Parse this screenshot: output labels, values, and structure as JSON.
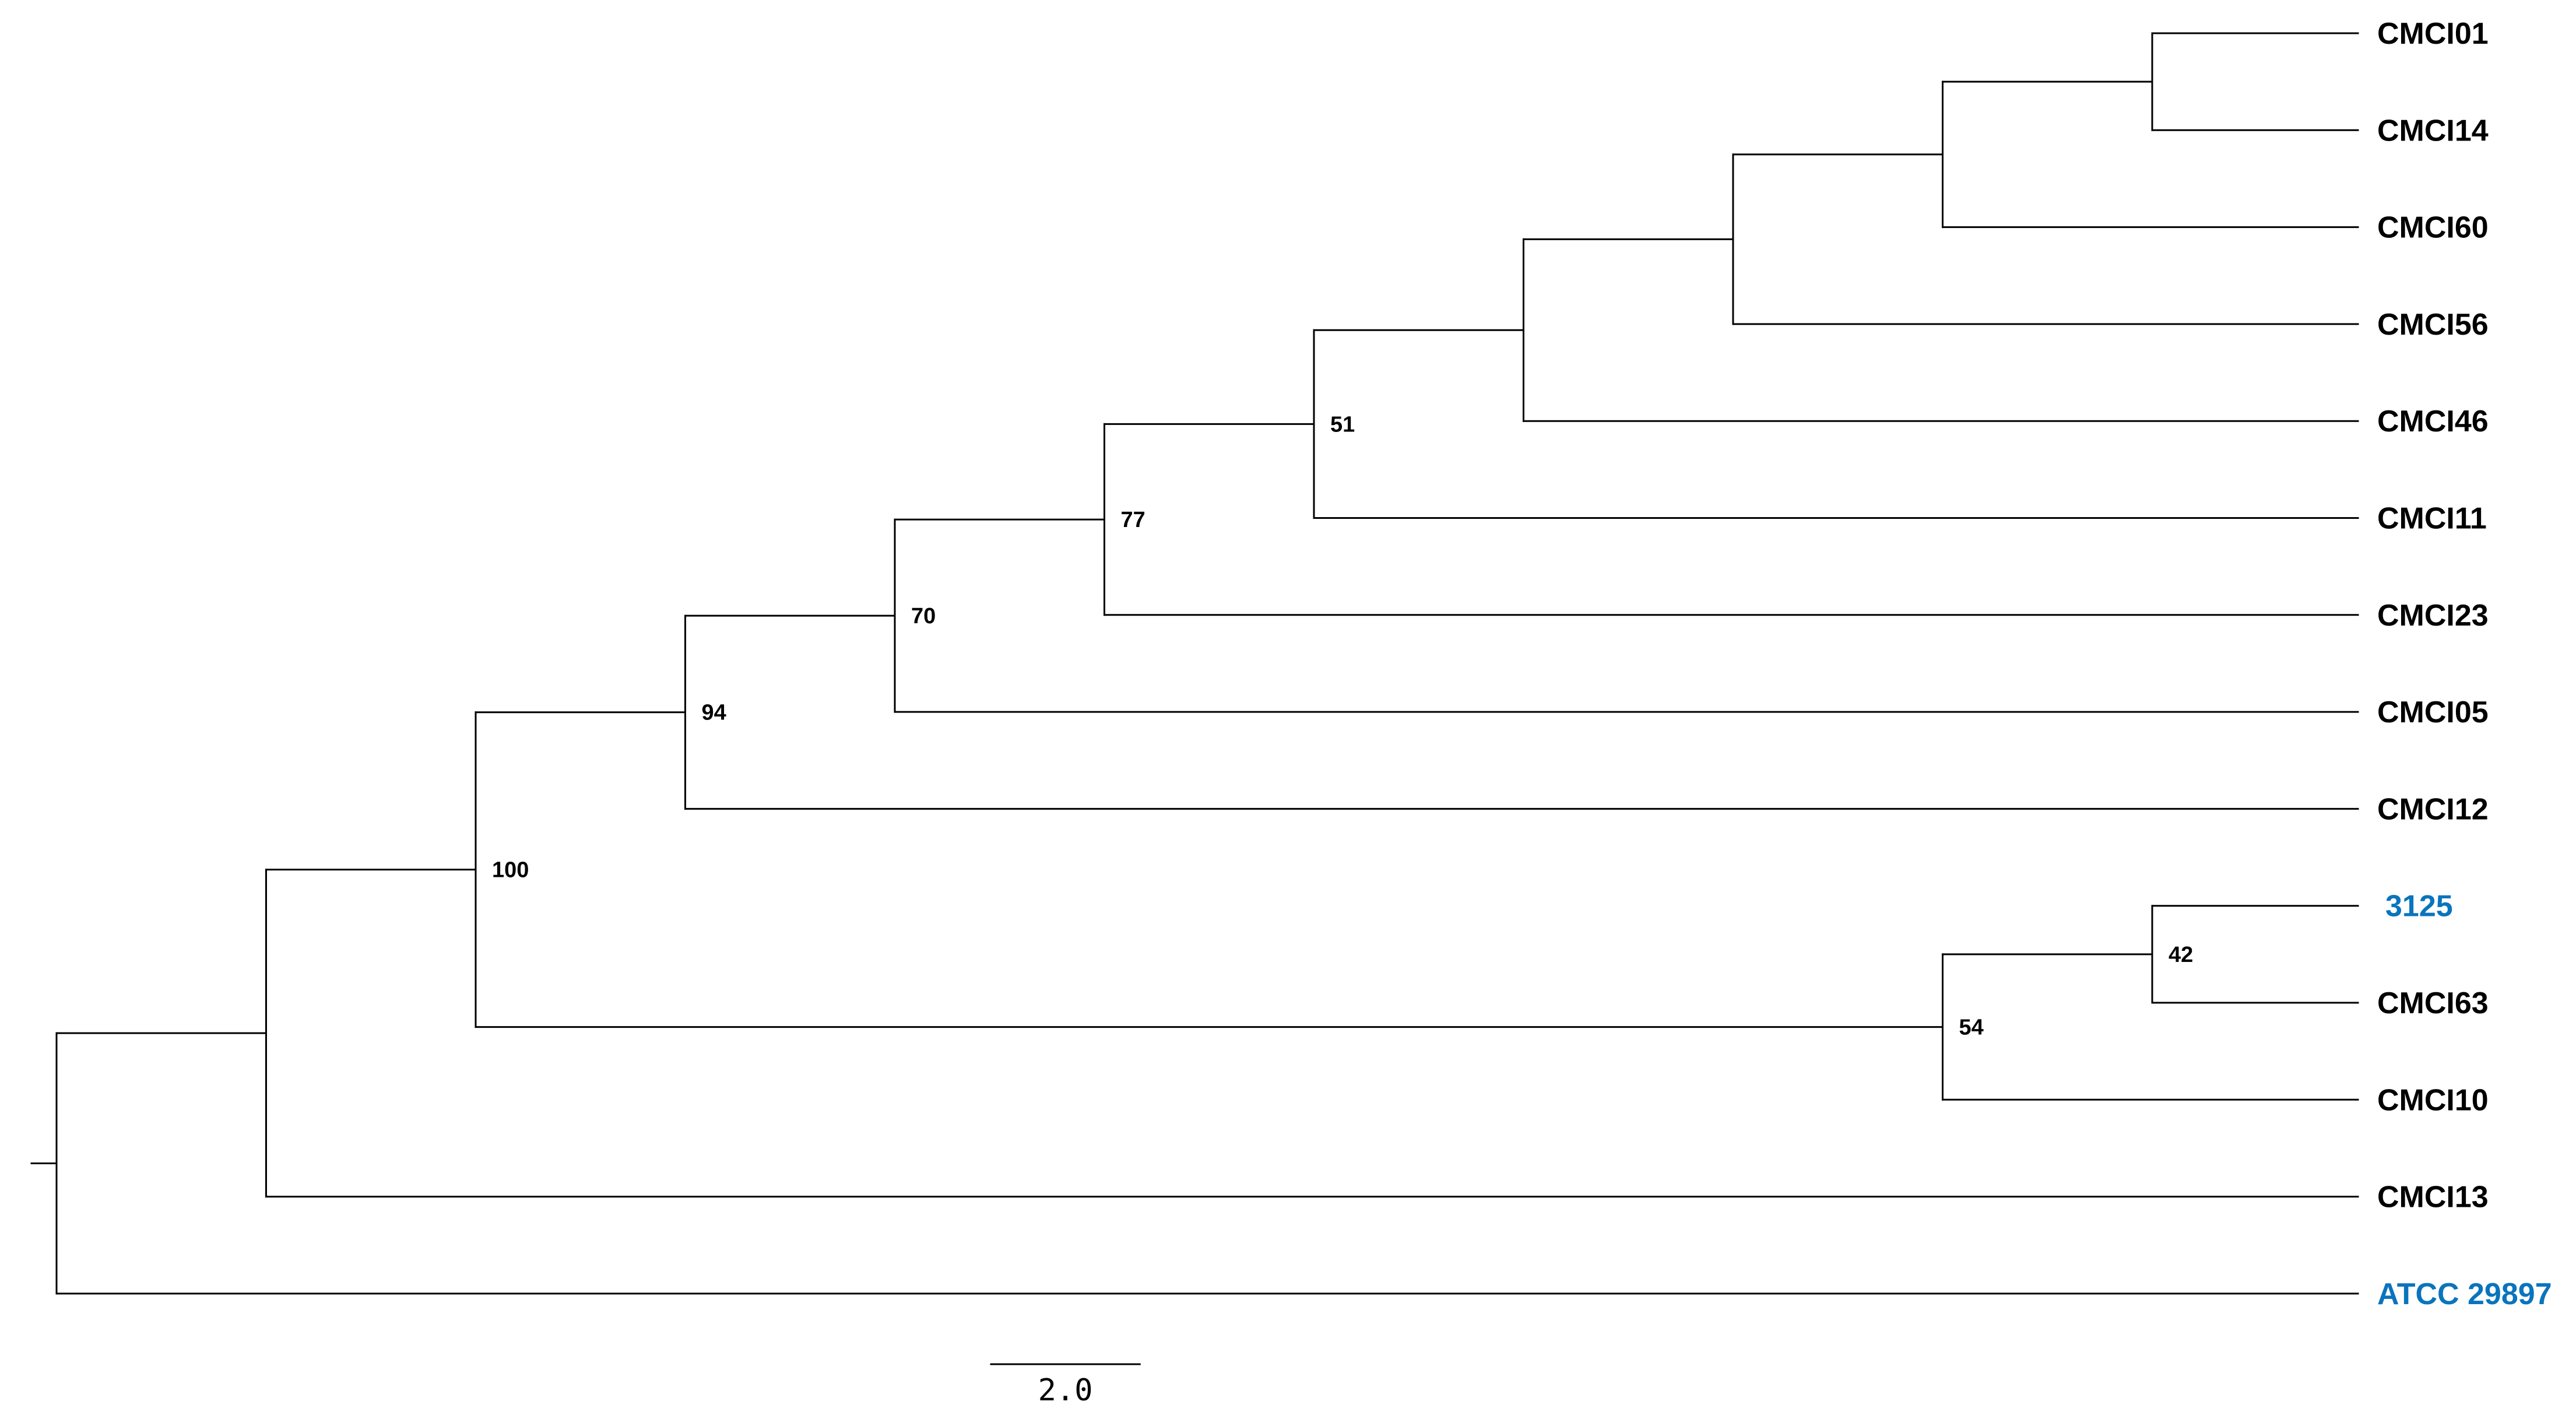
{
  "colors": {
    "branch": "#000000",
    "tip_default": "#000000",
    "tip_highlight": "#0a74bd"
  },
  "tree": {
    "nodes": [
      {
        "id": "n_root",
        "parent": null,
        "x": 0
      },
      {
        "id": "n_a",
        "parent": "n_root",
        "x": 1
      },
      {
        "id": "n_b",
        "parent": "n_a",
        "x": 2,
        "support": "100"
      },
      {
        "id": "n_c",
        "parent": "n_b",
        "x": 3,
        "support": "94"
      },
      {
        "id": "n_d",
        "parent": "n_c",
        "x": 4,
        "support": "70"
      },
      {
        "id": "n_e",
        "parent": "n_d",
        "x": 5,
        "support": "77"
      },
      {
        "id": "n_f",
        "parent": "n_e",
        "x": 6,
        "support": "51"
      },
      {
        "id": "n_g",
        "parent": "n_f",
        "x": 7
      },
      {
        "id": "n_h",
        "parent": "n_g",
        "x": 8
      },
      {
        "id": "n_i",
        "parent": "n_h",
        "x": 9
      },
      {
        "id": "n_j",
        "parent": "n_i",
        "x": 10
      },
      {
        "id": "n_k",
        "parent": "n_b",
        "x": 9,
        "support": "54"
      },
      {
        "id": "n_l",
        "parent": "n_k",
        "x": 10,
        "support": "42"
      }
    ],
    "tips": [
      {
        "id": "t_cmci01",
        "parent": "n_j",
        "label": "CMCI01",
        "color": "#000000"
      },
      {
        "id": "t_cmci14",
        "parent": "n_j",
        "label": "CMCI14",
        "color": "#000000"
      },
      {
        "id": "t_cmci60",
        "parent": "n_i",
        "label": "CMCI60",
        "color": "#000000"
      },
      {
        "id": "t_cmci56",
        "parent": "n_h",
        "label": "CMCI56",
        "color": "#000000"
      },
      {
        "id": "t_cmci46",
        "parent": "n_g",
        "label": "CMCI46",
        "color": "#000000"
      },
      {
        "id": "t_cmci11",
        "parent": "n_f",
        "label": "CMCI11",
        "color": "#000000"
      },
      {
        "id": "t_cmci23",
        "parent": "n_e",
        "label": "CMCI23",
        "color": "#000000"
      },
      {
        "id": "t_cmci05",
        "parent": "n_d",
        "label": "CMCI05",
        "color": "#000000"
      },
      {
        "id": "t_cmci12",
        "parent": "n_c",
        "label": "CMCI12",
        "color": "#000000"
      },
      {
        "id": "t_3125",
        "parent": "n_l",
        "label": "3125",
        "color": "#0a74bd"
      },
      {
        "id": "t_cmci63",
        "parent": "n_l",
        "label": "CMCI63",
        "color": "#000000"
      },
      {
        "id": "t_cmci10",
        "parent": "n_k",
        "label": "CMCI10",
        "color": "#000000"
      },
      {
        "id": "t_cmci13",
        "parent": "n_a",
        "label": "CMCI13",
        "color": "#000000"
      },
      {
        "id": "t_atcc29897",
        "parent": "n_root",
        "label": "ATCC 29897",
        "color": "#0a74bd"
      }
    ]
  },
  "scale_bar": {
    "label": "2.0",
    "length": 2
  }
}
